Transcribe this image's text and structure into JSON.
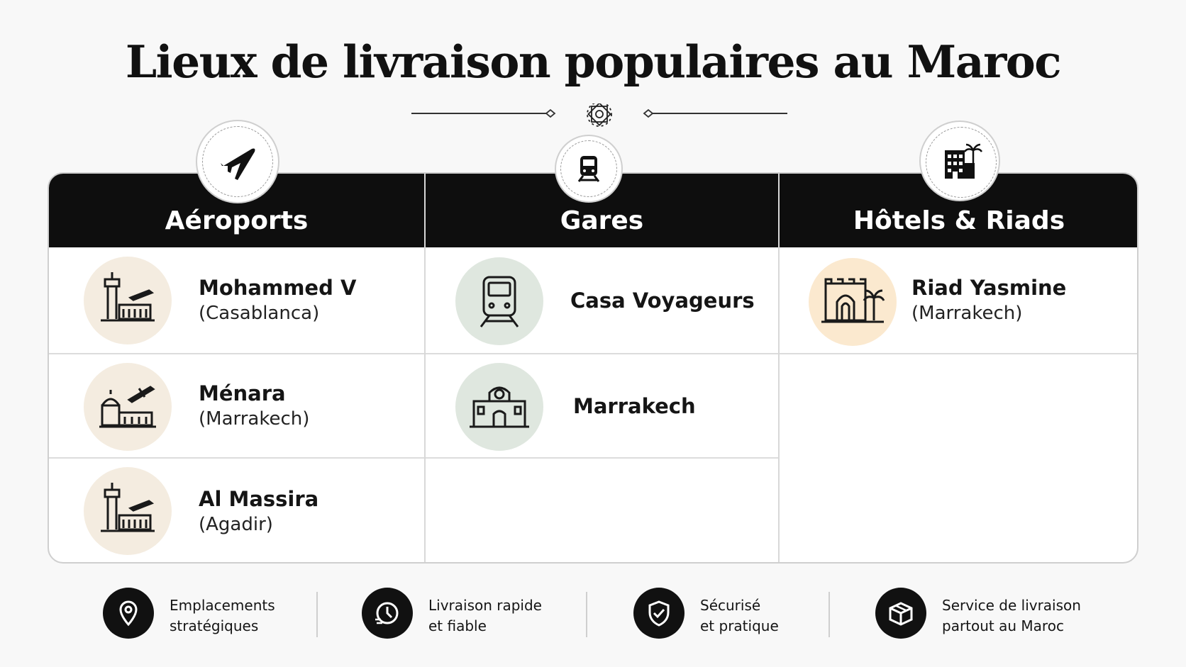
{
  "title": "Lieux de livraison populaires au Maroc",
  "columns": [
    {
      "heading": "Aéroports",
      "icon": "airplane-icon",
      "items": [
        {
          "name": "Mohammed V",
          "sub": "(Casablanca)",
          "icon": "airport-tower-icon"
        },
        {
          "name": "Ménara",
          "sub": "(Marrakech)",
          "icon": "airport-terminal-icon"
        },
        {
          "name": "Al Massira",
          "sub": "(Agadir)",
          "icon": "airport-tower-icon"
        }
      ]
    },
    {
      "heading": "Gares",
      "icon": "train-icon",
      "items": [
        {
          "name": "Casa Voyageurs",
          "icon": "train-front-icon"
        },
        {
          "name": "Marrakech",
          "icon": "station-building-icon"
        }
      ]
    },
    {
      "heading": "Hôtels & Riads",
      "icon": "hotel-icon",
      "items": [
        {
          "name": "Riad Yasmine",
          "sub": "(Marrakech)",
          "icon": "riad-gate-icon"
        }
      ]
    }
  ],
  "features": [
    {
      "text": "Emplacements\nstratégiques",
      "icon": "location-pin-icon"
    },
    {
      "text": "Livraison rapide\net fiable",
      "icon": "clock-icon"
    },
    {
      "text": "Sécurisé\net pratique",
      "icon": "shield-check-icon"
    },
    {
      "text": "Service de livraison\npartout au Maroc",
      "icon": "package-icon"
    }
  ],
  "colors": {
    "header_bg": "#0e0e0e",
    "beige": "#f4ece0",
    "green": "#dfe7df",
    "peach": "#fbe9cf"
  }
}
